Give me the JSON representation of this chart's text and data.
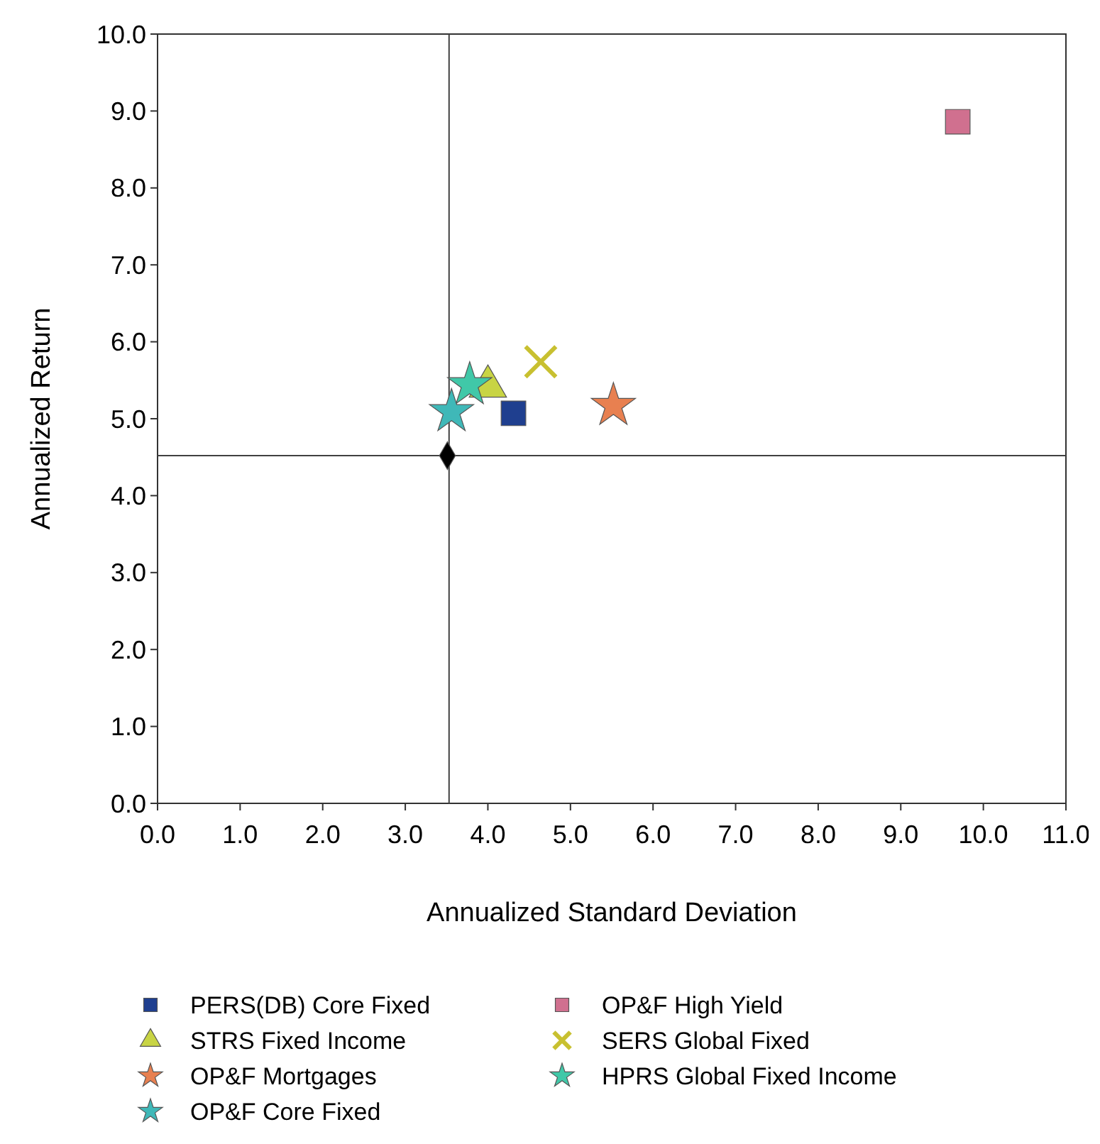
{
  "chart_data": {
    "type": "scatter",
    "xlabel": "Annualized Standard Deviation",
    "ylabel": "Annualized Return",
    "xlim": [
      0,
      11
    ],
    "ylim": [
      0,
      10
    ],
    "xticks": [
      {
        "value": 0,
        "label": "0.0"
      },
      {
        "value": 1,
        "label": "1.0"
      },
      {
        "value": 2,
        "label": "2.0"
      },
      {
        "value": 3,
        "label": "3.0"
      },
      {
        "value": 4,
        "label": "4.0"
      },
      {
        "value": 5,
        "label": "5.0"
      },
      {
        "value": 6,
        "label": "6.0"
      },
      {
        "value": 7,
        "label": "7.0"
      },
      {
        "value": 8,
        "label": "8.0"
      },
      {
        "value": 9,
        "label": "9.0"
      },
      {
        "value": 10,
        "label": "10.0"
      },
      {
        "value": 11,
        "label": "11.0"
      }
    ],
    "yticks": [
      {
        "value": 0,
        "label": "0.0"
      },
      {
        "value": 1,
        "label": "1.0"
      },
      {
        "value": 2,
        "label": "2.0"
      },
      {
        "value": 3,
        "label": "3.0"
      },
      {
        "value": 4,
        "label": "4.0"
      },
      {
        "value": 5,
        "label": "5.0"
      },
      {
        "value": 6,
        "label": "6.0"
      },
      {
        "value": 7,
        "label": "7.0"
      },
      {
        "value": 8,
        "label": "8.0"
      },
      {
        "value": 9,
        "label": "9.0"
      },
      {
        "value": 10,
        "label": "10.0"
      }
    ],
    "grid": false,
    "legend": "bottom",
    "ref_lines": [
      {
        "axis": "x",
        "value": 3.53,
        "color": "#404040"
      },
      {
        "axis": "y",
        "value": 4.52,
        "color": "#404040"
      }
    ],
    "series": [
      {
        "name": "PERS(DB) Core Fixed",
        "color": "#1f3f8f",
        "marker": "square",
        "x": [
          4.31
        ],
        "values": [
          5.07
        ]
      },
      {
        "name": "OP&F High Yield",
        "color": "#d0708f",
        "marker": "square",
        "x": [
          9.69
        ],
        "values": [
          8.86
        ]
      },
      {
        "name": "STRS Fixed Income",
        "color": "#c8d444",
        "marker": "triangle",
        "x": [
          4.0
        ],
        "values": [
          5.42
        ]
      },
      {
        "name": "SERS Global Fixed",
        "color": "#c8c030",
        "marker": "cross",
        "x": [
          4.64
        ],
        "values": [
          5.74
        ]
      },
      {
        "name": "OP&F Mortgages",
        "color": "#e88050",
        "marker": "star",
        "x": [
          5.52
        ],
        "values": [
          5.17
        ]
      },
      {
        "name": "HPRS Global Fixed Income",
        "color": "#40c8a8",
        "marker": "star",
        "x": [
          3.78
        ],
        "values": [
          5.44
        ]
      },
      {
        "name": "OP&F Core Fixed",
        "color": "#3fb8b8",
        "marker": "star",
        "x": [
          3.56
        ],
        "values": [
          5.09
        ]
      },
      {
        "color": "#000000",
        "marker": "diamond",
        "x": [
          3.51
        ],
        "values": [
          4.52
        ]
      }
    ]
  }
}
